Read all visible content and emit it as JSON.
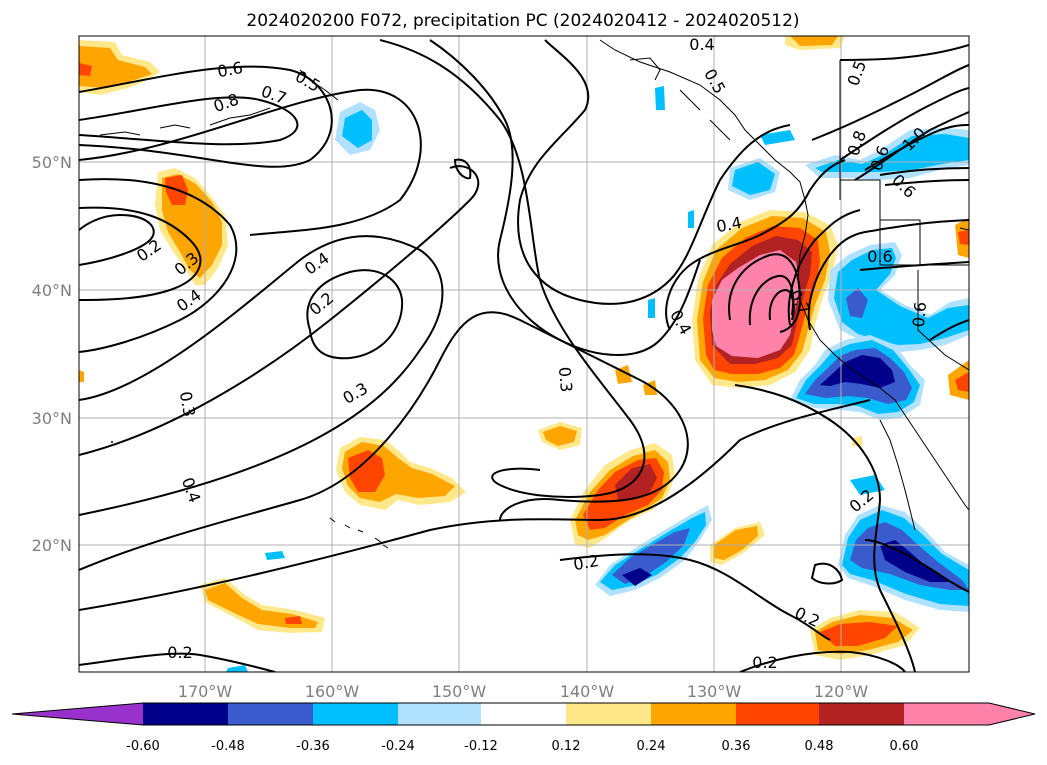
{
  "title": "2024020200 F072, precipitation PC (2024020412 - 2024020512)",
  "lat_labels": [
    "50°N",
    "40°N",
    "30°N",
    "20°N"
  ],
  "lon_labels": [
    "170°W",
    "160°W",
    "150°W",
    "140°W",
    "130°W",
    "120°W"
  ],
  "contour_labels": [
    "0.6",
    "0.7",
    "0.5",
    "0.8",
    "0.2",
    "0.3",
    "0.4",
    "0.4",
    "0.2",
    "0.3",
    "0.3",
    "0.4",
    "0.3",
    "0.2",
    "0.4",
    "0.4",
    "0.7",
    "0.4",
    "0.5",
    "0.5",
    "0.8",
    "0.6",
    "1.0",
    "0.6",
    "0.6",
    "0.6",
    "0.2",
    "0.2",
    "0.2",
    "0.2"
  ],
  "colorbar": {
    "ticks": [
      "-0.60",
      "-0.48",
      "-0.36",
      "-0.24",
      "-0.12",
      "0.12",
      "0.24",
      "0.36",
      "0.48",
      "0.60"
    ],
    "colors": {
      "lt_m060": "#9932cc",
      "m060_m048": "#00008b",
      "m048_m036": "#3a5bcd",
      "m036_m024": "#00bfff",
      "m024_m012": "#b0e2ff",
      "m012_012": "#ffffff",
      "p012_024": "#ffe88a",
      "p024_036": "#ffa500",
      "p036_048": "#ff4500",
      "p048_060": "#b22222",
      "gt_060": "#ff82ab"
    }
  }
}
